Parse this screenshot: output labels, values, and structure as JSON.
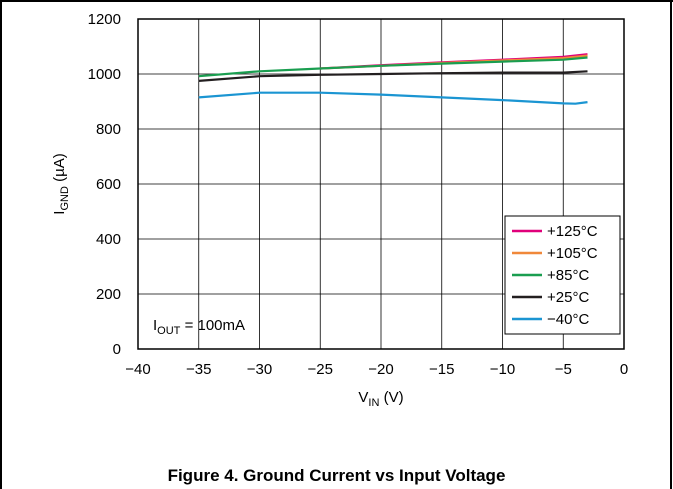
{
  "caption": "Figure 4. Ground Current vs Input Voltage",
  "chart_data": {
    "type": "line",
    "title": "",
    "xlabel": {
      "main": "V",
      "sub": "IN",
      "unit": " (V)"
    },
    "ylabel": {
      "main": "I",
      "sub": "GND",
      "unit": " (µA)"
    },
    "xlim": [
      -40,
      0
    ],
    "ylim": [
      0,
      1200
    ],
    "xticks": [
      -40,
      -35,
      -30,
      -25,
      -20,
      -15,
      -10,
      -5,
      0
    ],
    "xtick_labels": [
      "−40",
      "−35",
      "−30",
      "−25",
      "−20",
      "−15",
      "−10",
      "−5",
      "0"
    ],
    "yticks": [
      0,
      200,
      400,
      600,
      800,
      1000,
      1200
    ],
    "ytick_labels": [
      "0",
      "200",
      "400",
      "600",
      "800",
      "1000",
      "1200"
    ],
    "grid": true,
    "legend_position": "bottom-right",
    "annotation": {
      "main": "I",
      "sub": "OUT",
      "rest": " = 100mA"
    },
    "series": [
      {
        "name": "+125°C",
        "color": "#e0007a",
        "x": [
          -25,
          -20,
          -15,
          -10,
          -5,
          -3
        ],
        "y": [
          1020,
          1032,
          1042,
          1052,
          1062,
          1072
        ]
      },
      {
        "name": "+105°C",
        "color": "#f0883a",
        "x": [
          -25,
          -20,
          -15,
          -10,
          -5,
          -3
        ],
        "y": [
          1020,
          1030,
          1040,
          1049,
          1058,
          1067
        ]
      },
      {
        "name": "+85°C",
        "color": "#1a9e50",
        "x": [
          -35,
          -30,
          -25,
          -20,
          -15,
          -10,
          -5,
          -3
        ],
        "y": [
          992,
          1010,
          1020,
          1030,
          1038,
          1045,
          1052,
          1060
        ]
      },
      {
        "name": "+25°C",
        "color": "#231f20",
        "x": [
          -35,
          -30,
          -25,
          -20,
          -15,
          -10,
          -5,
          -3
        ],
        "y": [
          975,
          992,
          997,
          1000,
          1003,
          1005,
          1005,
          1010
        ]
      },
      {
        "name": "−40°C",
        "color": "#1b95d2",
        "x": [
          -35,
          -30,
          -25,
          -20,
          -15,
          -10,
          -5,
          -4,
          -3
        ],
        "y": [
          915,
          932,
          932,
          925,
          915,
          905,
          893,
          892,
          898
        ]
      }
    ]
  }
}
